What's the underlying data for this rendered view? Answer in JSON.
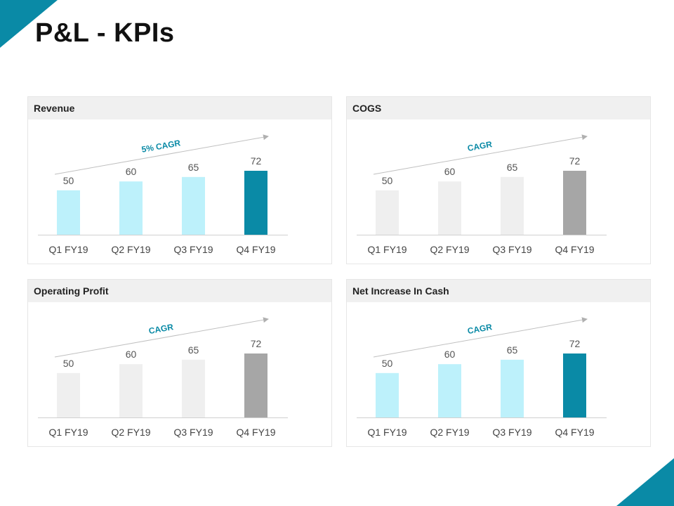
{
  "page": {
    "title": "P&L - KPIs"
  },
  "colors": {
    "accent": "#0a8aa6",
    "light_cyan": "#bdf1fb",
    "light_gray": "#efefef",
    "mid_gray": "#a6a6a6",
    "axis": "#d0d0d0"
  },
  "chart_data": [
    {
      "type": "bar",
      "title": "Revenue",
      "annotation": "5% CAGR",
      "categories": [
        "Q1 FY19",
        "Q2 FY19",
        "Q3 FY19",
        "Q4 FY19"
      ],
      "values": [
        50,
        60,
        65,
        72
      ],
      "bar_colors": [
        "#bdf1fb",
        "#bdf1fb",
        "#bdf1fb",
        "#0a8aa6"
      ],
      "ylim": [
        0,
        72
      ]
    },
    {
      "type": "bar",
      "title": "COGS",
      "annotation": "CAGR",
      "categories": [
        "Q1 FY19",
        "Q2 FY19",
        "Q3 FY19",
        "Q4 FY19"
      ],
      "values": [
        50,
        60,
        65,
        72
      ],
      "bar_colors": [
        "#efefef",
        "#efefef",
        "#efefef",
        "#a6a6a6"
      ],
      "ylim": [
        0,
        72
      ]
    },
    {
      "type": "bar",
      "title": "Operating Profit",
      "annotation": "CAGR",
      "categories": [
        "Q1 FY19",
        "Q2 FY19",
        "Q3 FY19",
        "Q4 FY19"
      ],
      "values": [
        50,
        60,
        65,
        72
      ],
      "bar_colors": [
        "#efefef",
        "#efefef",
        "#efefef",
        "#a6a6a6"
      ],
      "ylim": [
        0,
        72
      ]
    },
    {
      "type": "bar",
      "title": "Net Increase In Cash",
      "annotation": "CAGR",
      "categories": [
        "Q1 FY19",
        "Q2 FY19",
        "Q3 FY19",
        "Q4 FY19"
      ],
      "values": [
        50,
        60,
        65,
        72
      ],
      "bar_colors": [
        "#bdf1fb",
        "#bdf1fb",
        "#bdf1fb",
        "#0a8aa6"
      ],
      "ylim": [
        0,
        72
      ]
    }
  ]
}
